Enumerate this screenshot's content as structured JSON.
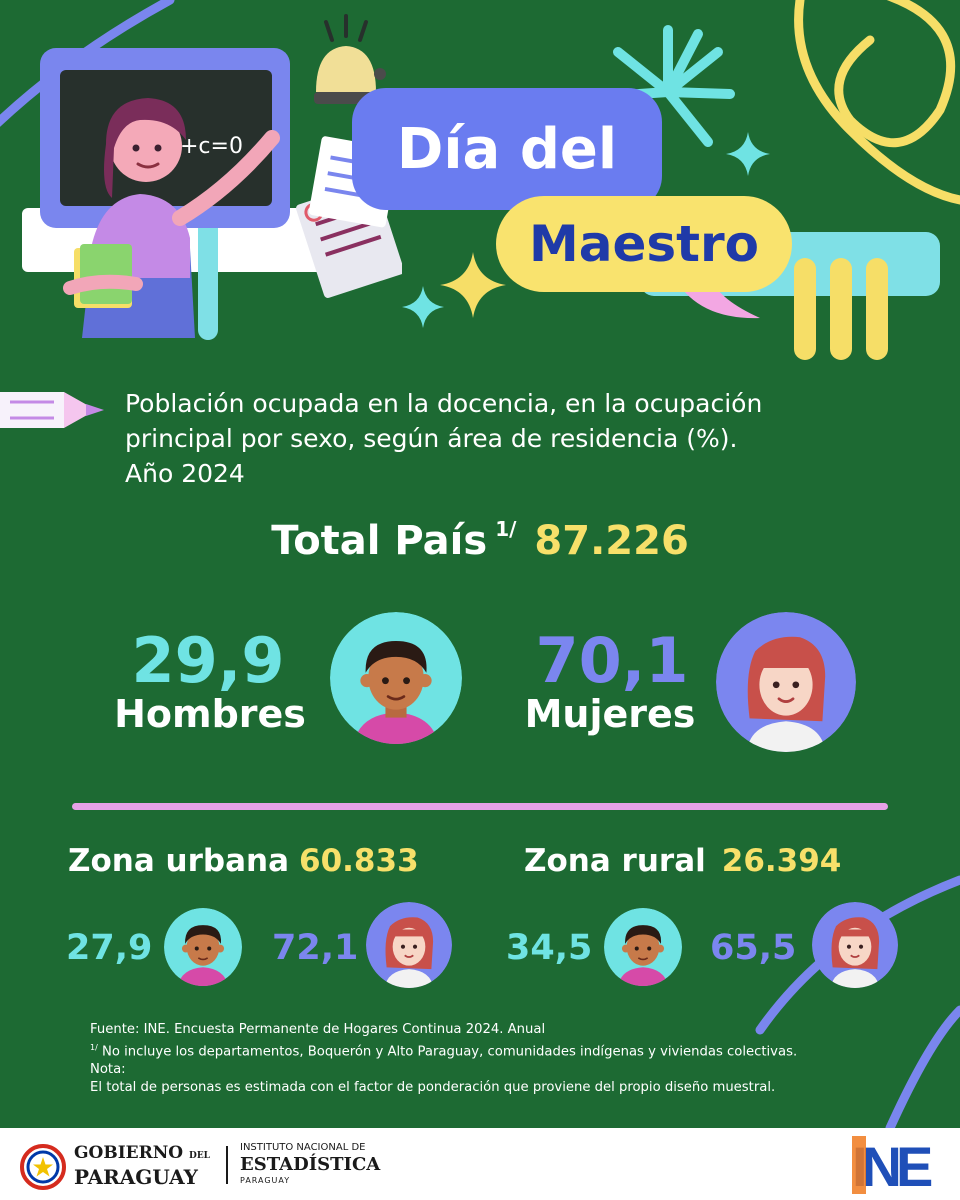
{
  "header": {
    "title_line1": "Día del",
    "title_line2": "Maestro",
    "chalkboard_text": "+c=0"
  },
  "subtitle": {
    "line1": "Población ocupada en la docencia, en la ocupación",
    "line2": "principal por sexo, según área de residencia (%).",
    "line3": "Año 2024"
  },
  "total": {
    "label": "Total País",
    "footnote_mark": "1/",
    "value": "87.226"
  },
  "national": {
    "men": {
      "value": "29,9",
      "label": "Hombres"
    },
    "women": {
      "value": "70,1",
      "label": "Mujeres"
    }
  },
  "zones": {
    "urban": {
      "label": "Zona urbana",
      "total": "60.833",
      "men": "27,9",
      "women": "72,1"
    },
    "rural": {
      "label": "Zona rural",
      "total": "26.394",
      "men": "34,5",
      "women": "65,5"
    }
  },
  "notes": {
    "source": "Fuente: INE. Encuesta Permanente de Hogares Continua 2024. Anual",
    "footnote_mark": "1/",
    "footnote1": " No incluye los departamentos, Boquerón y Alto Paraguay, comunidades indígenas y viviendas colectivas.",
    "nota_label": "Nota:",
    "nota_text": "El total de personas es estimada con el factor de ponderación que proviene del propio diseño muestral."
  },
  "footer": {
    "gov_line1": "GOBIERNO",
    "gov_del": "DEL",
    "gov_line2": "PARAGUAY",
    "ine_line1": "INSTITUTO NACIONAL DE",
    "ine_line2": "ESTADÍSTICA",
    "ine_line3": "PARAGUAY",
    "ine_logo_text": "INE"
  },
  "colors": {
    "background": "#1d6a33",
    "men_accent": "#6fe3e3",
    "women_accent": "#7b86ef",
    "number_accent": "#f7e06a",
    "divider": "#e6a2e8"
  },
  "icons": {
    "teacher": "teacher-illustration",
    "bell": "bell-icon",
    "papers": "exam-papers-icon",
    "pencil": "pencil-icon",
    "sparkle": "sparkle-icon",
    "burst": "starburst-icon",
    "man": "man-avatar-icon",
    "woman": "woman-avatar-icon",
    "gov_crest": "paraguay-crest-icon",
    "ine_logo": "ine-logo"
  }
}
